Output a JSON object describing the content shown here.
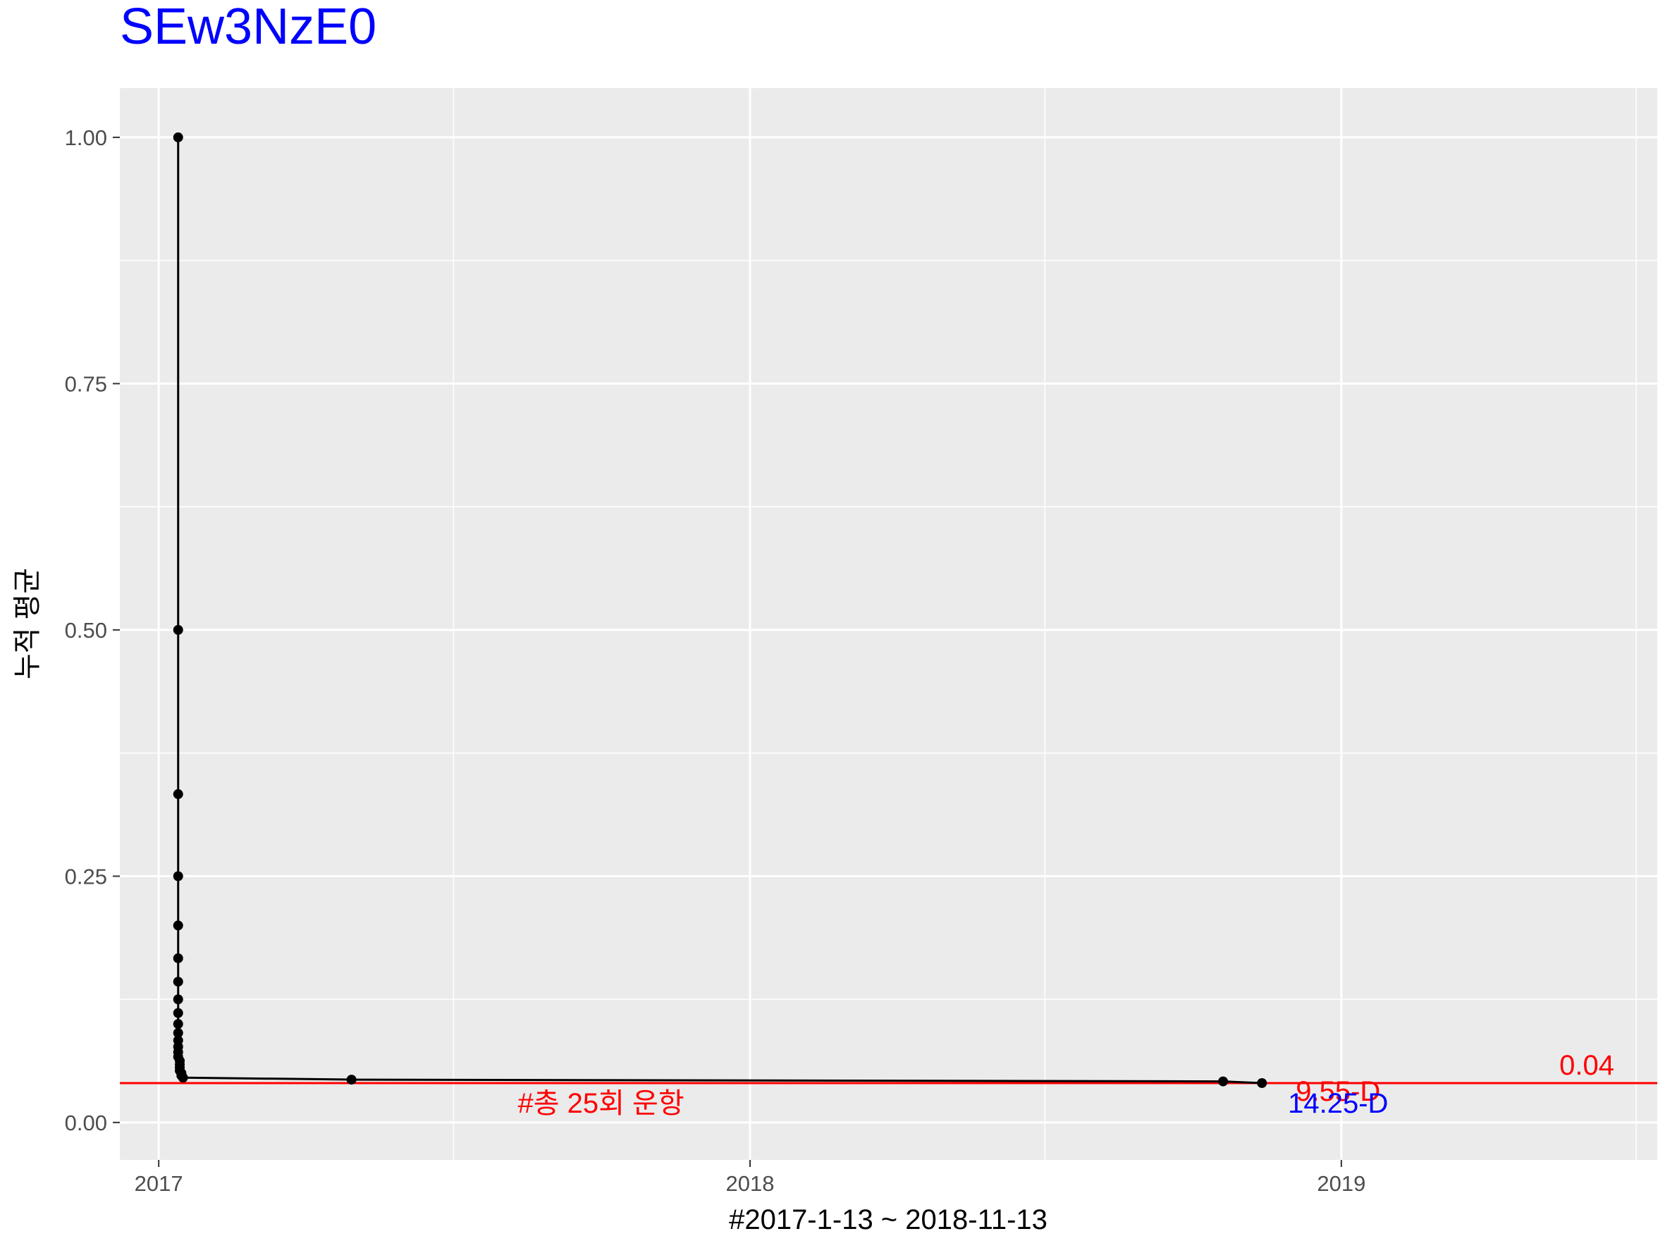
{
  "chart_data": {
    "type": "line",
    "title": "SEw3NzE0",
    "title_color": "#0000ff",
    "xlabel": "#2017-1-13 ~ 2018-11-13",
    "ylabel": "누적 평균",
    "x_axis": {
      "type": "date",
      "range": [
        "2016-12-08",
        "2019-07-15"
      ],
      "ticks": [
        "2017",
        "2018",
        "2019"
      ]
    },
    "y_axis": {
      "range": [
        -0.038,
        1.05
      ],
      "ticks": [
        "0.00",
        "0.25",
        "0.50",
        "0.75",
        "1.00"
      ]
    },
    "grid": true,
    "panel_background": "#ebebeb",
    "series": [
      {
        "color": "#000000",
        "points": [
          {
            "x": "2017-01-13",
            "y": 1.0
          },
          {
            "x": "2017-01-13",
            "y": 0.5
          },
          {
            "x": "2017-01-13",
            "y": 0.3333
          },
          {
            "x": "2017-01-13",
            "y": 0.25
          },
          {
            "x": "2017-01-13",
            "y": 0.2
          },
          {
            "x": "2017-01-13",
            "y": 0.1667
          },
          {
            "x": "2017-01-13",
            "y": 0.1429
          },
          {
            "x": "2017-01-13",
            "y": 0.125
          },
          {
            "x": "2017-01-13",
            "y": 0.1111
          },
          {
            "x": "2017-01-13",
            "y": 0.1
          },
          {
            "x": "2017-01-13",
            "y": 0.0909
          },
          {
            "x": "2017-01-13",
            "y": 0.0833
          },
          {
            "x": "2017-01-13",
            "y": 0.0769
          },
          {
            "x": "2017-01-13",
            "y": 0.0714
          },
          {
            "x": "2017-01-13",
            "y": 0.0667
          },
          {
            "x": "2017-01-14",
            "y": 0.0625
          },
          {
            "x": "2017-01-14",
            "y": 0.0588
          },
          {
            "x": "2017-01-14",
            "y": 0.0556
          },
          {
            "x": "2017-01-14",
            "y": 0.0526
          },
          {
            "x": "2017-01-15",
            "y": 0.05
          },
          {
            "x": "2017-01-15",
            "y": 0.0476
          },
          {
            "x": "2017-01-16",
            "y": 0.0455
          },
          {
            "x": "2017-04-30",
            "y": 0.0435
          },
          {
            "x": "2018-10-20",
            "y": 0.0417
          },
          {
            "x": "2018-11-13",
            "y": 0.04
          }
        ]
      }
    ],
    "reference_line": {
      "y": 0.04,
      "color": "#ff0000",
      "label": "0.04"
    },
    "annotations": [
      {
        "text": "#총 25회 운항",
        "x": "2017-10-01",
        "y": 0.01,
        "color": "#ff0000"
      },
      {
        "text": "9.55-D",
        "x": "2018-12-30",
        "y": 0.022,
        "color": "#ff0000"
      },
      {
        "text": "14.25-D",
        "x": "2018-12-30",
        "y": 0.01,
        "color": "#0000ff"
      }
    ]
  }
}
